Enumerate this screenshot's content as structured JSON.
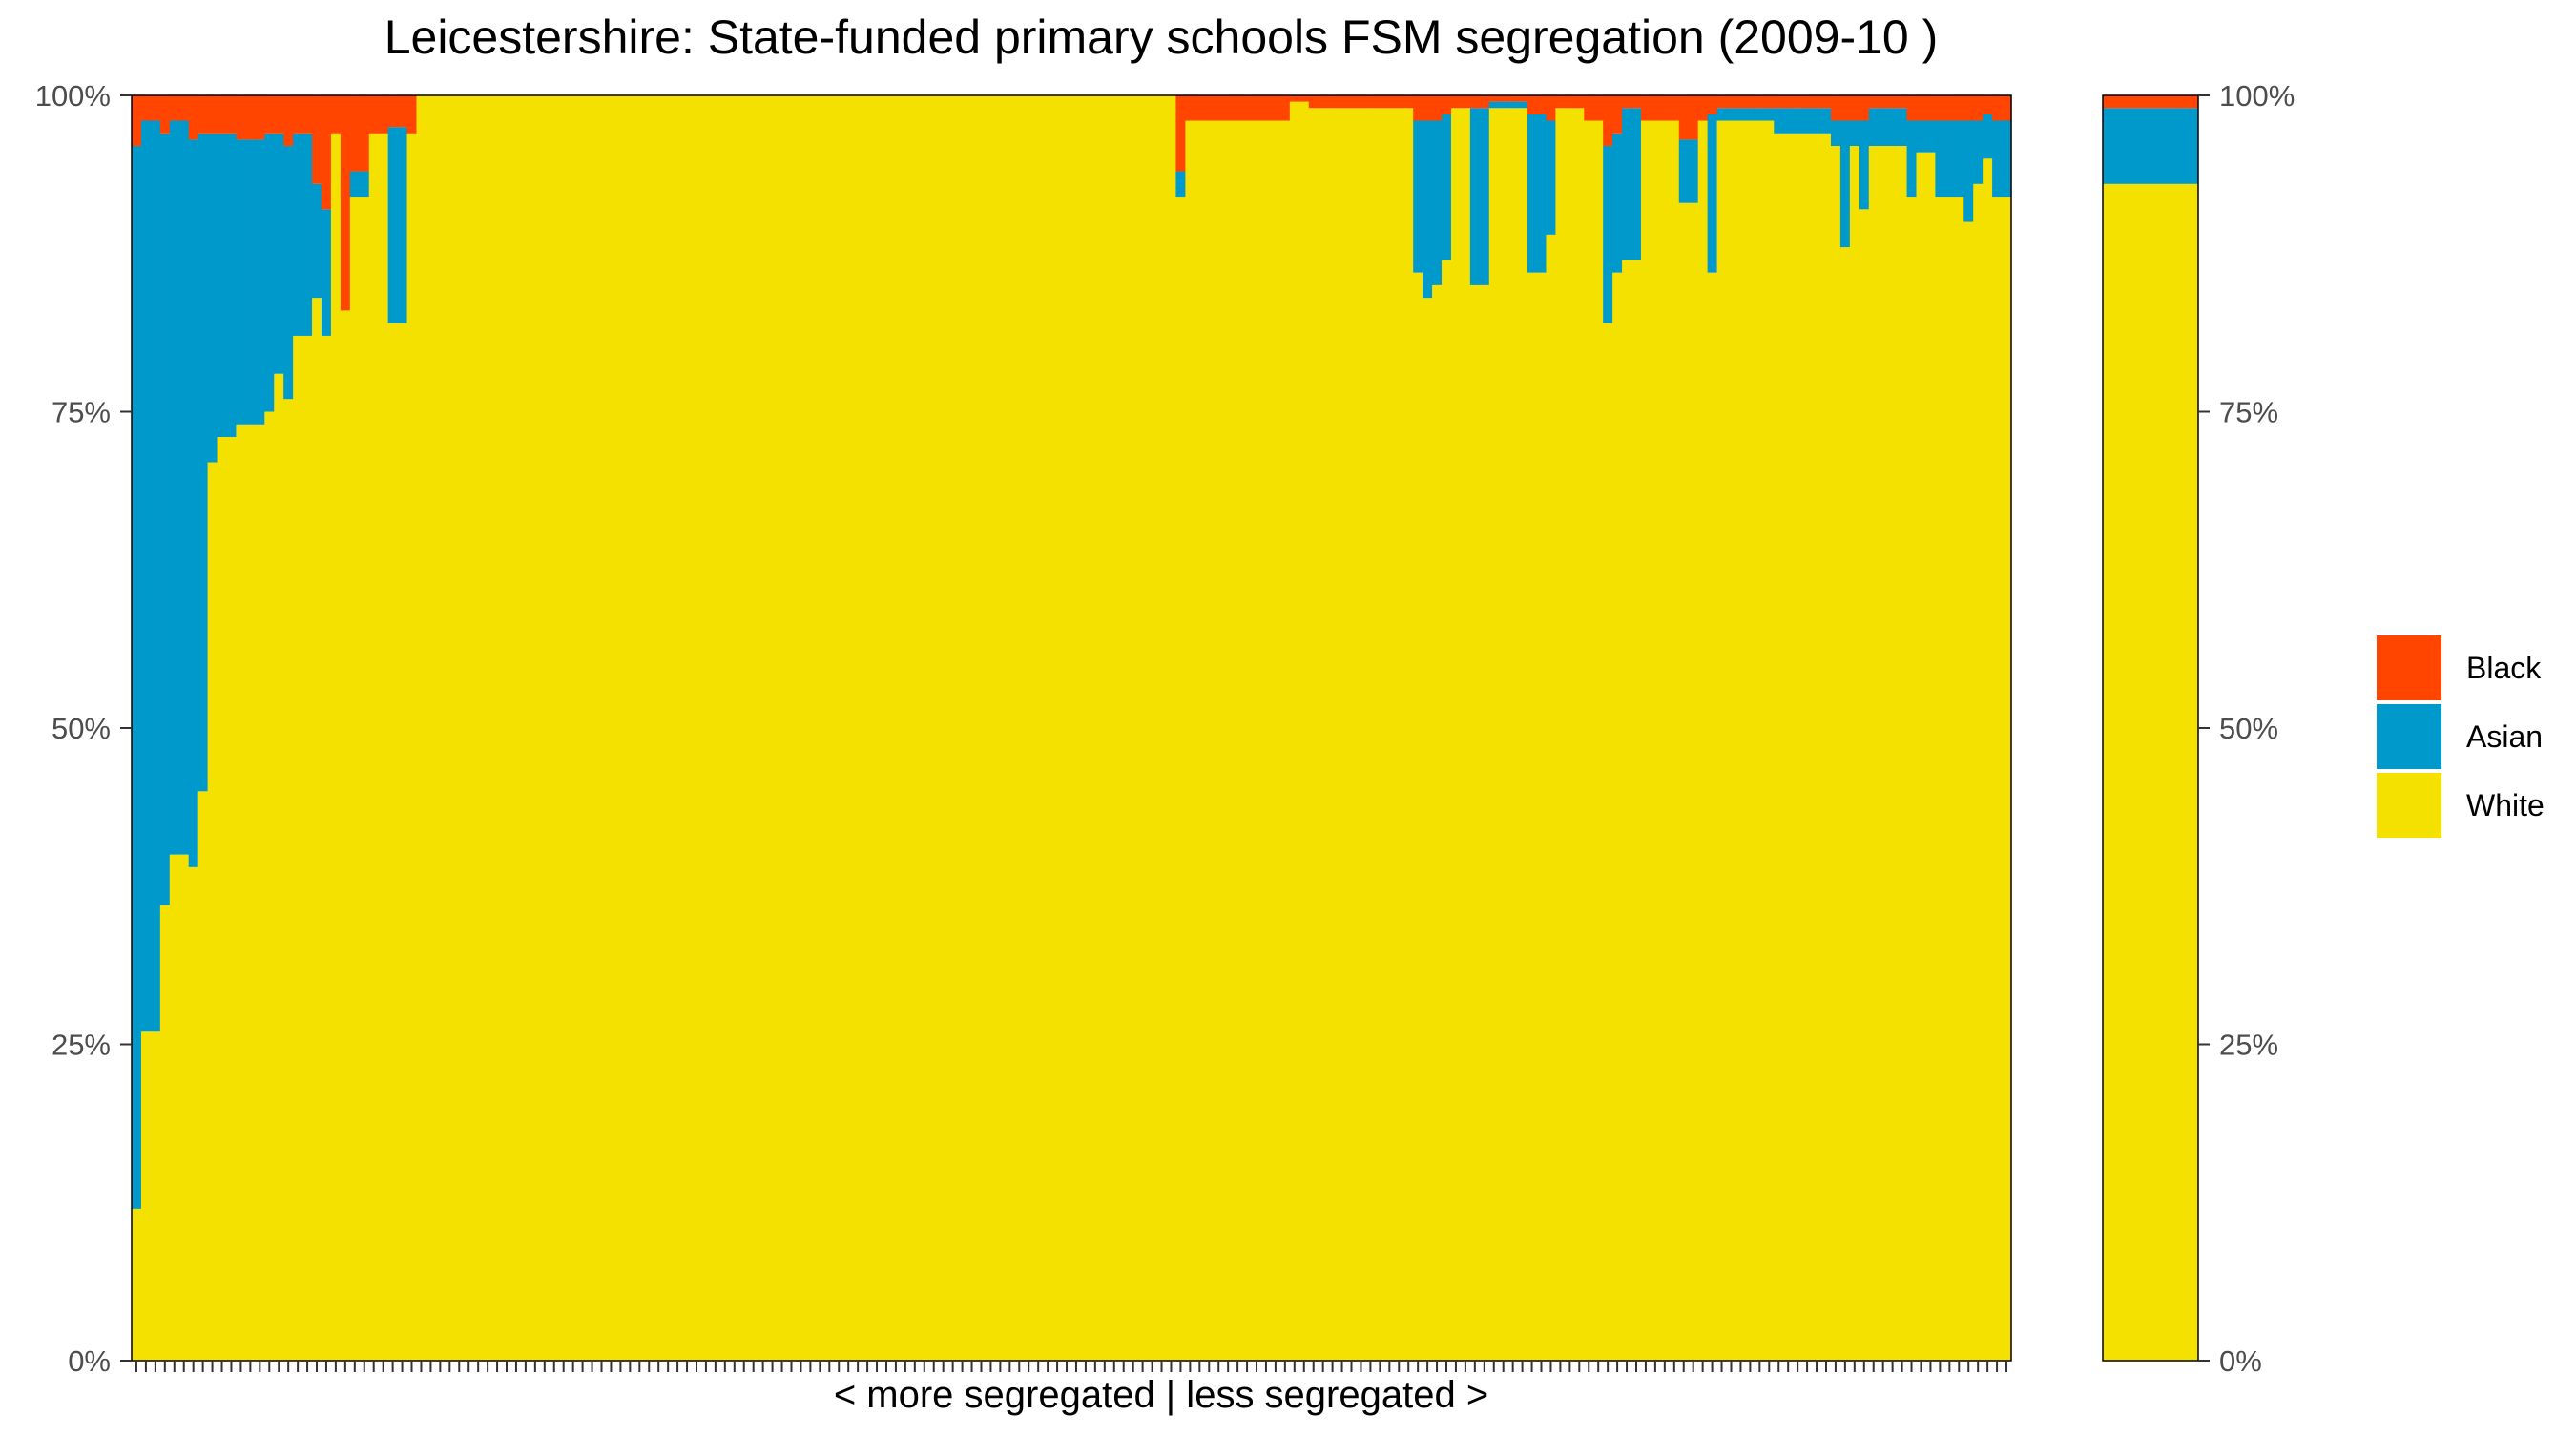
{
  "chart_data": {
    "type": "bar",
    "stacked": true,
    "normalized": true,
    "title": "Leicestershire: State-funded primary schools FSM segregation (2009-10 )",
    "xlabel": "< more segregated | less segregated >",
    "ylabel": "",
    "ylim": [
      0,
      100
    ],
    "y_ticks": [
      "0%",
      "25%",
      "50%",
      "75%",
      "100%"
    ],
    "y_tick_values": [
      0,
      25,
      50,
      75,
      100
    ],
    "grid": false,
    "legend_position": "right",
    "legend": [
      {
        "name": "Black",
        "color": "#ff4500"
      },
      {
        "name": "Asian",
        "color": "#0099cc"
      },
      {
        "name": "White",
        "color": "#f5e100"
      }
    ],
    "x_note": "~200 schools ordered from most to least segregated; category labels are not printed",
    "series": [
      {
        "name": "White",
        "color": "#f5e100",
        "values": [
          12,
          26,
          26,
          36,
          40,
          40,
          39,
          45,
          71,
          73,
          73,
          74,
          74,
          74,
          75,
          78,
          76,
          81,
          81,
          84,
          81,
          97,
          83,
          92,
          92,
          97,
          97,
          82,
          82,
          97,
          100,
          100,
          100,
          100,
          100,
          100,
          100,
          100,
          100,
          100,
          100,
          100,
          100,
          100,
          100,
          100,
          100,
          100,
          100,
          100,
          100,
          100,
          100,
          100,
          100,
          100,
          100,
          100,
          100,
          100,
          100,
          100,
          100,
          100,
          100,
          100,
          100,
          100,
          100,
          100,
          100,
          100,
          100,
          100,
          100,
          100,
          100,
          100,
          100,
          100,
          100,
          100,
          100,
          100,
          100,
          100,
          100,
          100,
          100,
          100,
          100,
          100,
          100,
          100,
          100,
          100,
          100,
          100,
          100,
          100,
          100,
          100,
          100,
          100,
          100,
          100,
          100,
          100,
          100,
          100,
          92,
          98,
          98,
          98,
          98,
          98,
          98,
          98,
          98,
          98,
          98,
          98,
          99.5,
          99.5,
          99,
          99,
          99,
          99,
          99,
          99,
          99,
          99,
          99,
          99,
          99,
          86,
          84,
          85,
          87,
          99,
          99,
          85,
          85,
          99,
          99,
          99,
          99,
          86,
          86,
          89,
          99,
          99,
          99,
          98,
          98,
          82,
          86,
          87,
          87,
          98,
          98,
          98,
          98,
          91.5,
          91.5,
          98,
          86,
          98,
          98,
          98,
          98,
          98,
          98,
          97,
          97,
          97,
          97,
          97,
          97,
          96,
          88,
          96,
          91,
          96,
          96,
          96,
          96,
          92,
          95.5,
          95.5,
          92,
          92,
          92,
          90,
          93,
          95,
          92,
          92
        ]
      },
      {
        "name": "Asian",
        "color": "#0099cc",
        "values": [
          84,
          72,
          72,
          61,
          58,
          58,
          57.5,
          52,
          26,
          24,
          24,
          22.5,
          22.5,
          22.5,
          22,
          19,
          20,
          16,
          16,
          9,
          10,
          0,
          0,
          2,
          2,
          0,
          0,
          15.5,
          15.5,
          0,
          0,
          0,
          0,
          0,
          0,
          0,
          0,
          0,
          0,
          0,
          0,
          0,
          0,
          0,
          0,
          0,
          0,
          0,
          0,
          0,
          0,
          0,
          0,
          0,
          0,
          0,
          0,
          0,
          0,
          0,
          0,
          0,
          0,
          0,
          0,
          0,
          0,
          0,
          0,
          0,
          0,
          0,
          0,
          0,
          0,
          0,
          0,
          0,
          0,
          0,
          0,
          0,
          0,
          0,
          0,
          0,
          0,
          0,
          0,
          0,
          0,
          0,
          0,
          0,
          0,
          0,
          0,
          0,
          0,
          0,
          0,
          0,
          0,
          0,
          0,
          0,
          0,
          0,
          0,
          0,
          2,
          0,
          0,
          0,
          0,
          0,
          0,
          0,
          0,
          0,
          0,
          0,
          0,
          0,
          0,
          0,
          0,
          0,
          0,
          0,
          0,
          0,
          0,
          0,
          0,
          12,
          14,
          13,
          11.5,
          0,
          0,
          14,
          14,
          0.5,
          0.5,
          0.5,
          0.5,
          12.5,
          12.5,
          9,
          0,
          0,
          0,
          0,
          0,
          14,
          11,
          12,
          12,
          0,
          0,
          0,
          0,
          5,
          5,
          0,
          12.5,
          1,
          1,
          1,
          1,
          1,
          1,
          2,
          2,
          2,
          2,
          2,
          2,
          2,
          10,
          2,
          7,
          3,
          3,
          3,
          3,
          6,
          2.5,
          2.5,
          6,
          6,
          6,
          8,
          5,
          3.5,
          6,
          6
        ]
      },
      {
        "name": "Black",
        "color": "#ff4500",
        "values": [
          4,
          2,
          2,
          3,
          2,
          2,
          3.5,
          3,
          3,
          3,
          3,
          3.5,
          3.5,
          3.5,
          3,
          3,
          4,
          3,
          3,
          7,
          9,
          3,
          17,
          6,
          6,
          3,
          3,
          2.5,
          2.5,
          3,
          0,
          0,
          0,
          0,
          0,
          0,
          0,
          0,
          0,
          0,
          0,
          0,
          0,
          0,
          0,
          0,
          0,
          0,
          0,
          0,
          0,
          0,
          0,
          0,
          0,
          0,
          0,
          0,
          0,
          0,
          0,
          0,
          0,
          0,
          0,
          0,
          0,
          0,
          0,
          0,
          0,
          0,
          0,
          0,
          0,
          0,
          0,
          0,
          0,
          0,
          0,
          0,
          0,
          0,
          0,
          0,
          0,
          0,
          0,
          0,
          0,
          0,
          0,
          0,
          0,
          0,
          0,
          0,
          0,
          0,
          0,
          0,
          0,
          0,
          0,
          0,
          0,
          0,
          0,
          0,
          6,
          2,
          2,
          2,
          2,
          2,
          2,
          2,
          2,
          2,
          2,
          2,
          0.5,
          0.5,
          1,
          1,
          1,
          1,
          1,
          1,
          1,
          1,
          1,
          1,
          1,
          2,
          2,
          2,
          1.5,
          1,
          1,
          1,
          1,
          0.5,
          0.5,
          0.5,
          0.5,
          1.5,
          1.5,
          2,
          1,
          1,
          1,
          2,
          2,
          4,
          3,
          1,
          1,
          2,
          2,
          2,
          2,
          3.5,
          3.5,
          2,
          1.5,
          1,
          1,
          1,
          1,
          1,
          1,
          1,
          1,
          1,
          1,
          1,
          1,
          2,
          2,
          2,
          2,
          1,
          1,
          1,
          1,
          2,
          2,
          2,
          2,
          2,
          2,
          2,
          2,
          1.5,
          2,
          2
        ]
      }
    ],
    "overall": {
      "White": 93,
      "Asian": 6,
      "Black": 1
    },
    "y_tick_labels_right": [
      "0%",
      "25%",
      "50%",
      "75%",
      "100%"
    ]
  }
}
